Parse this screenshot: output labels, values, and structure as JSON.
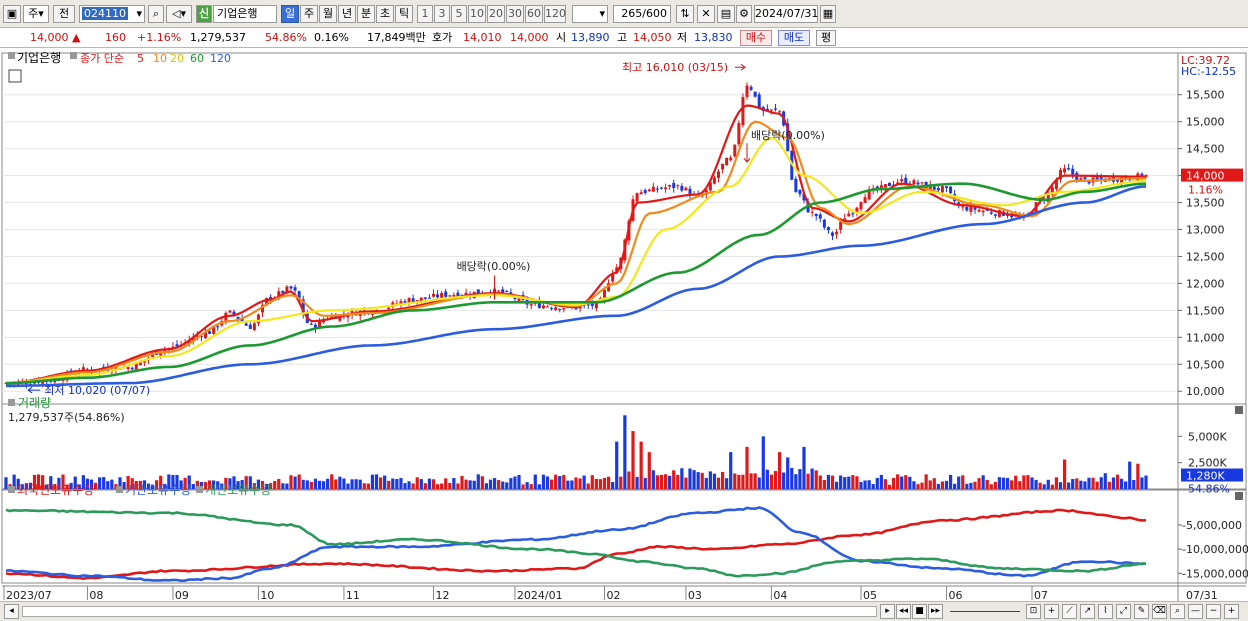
{
  "toolbar": {
    "market": "주",
    "prev": "전",
    "code": "024110",
    "new_badge": "신",
    "name": "기업은행",
    "periods": [
      "일",
      "주",
      "월",
      "년",
      "분",
      "초",
      "틱"
    ],
    "active_period": "일",
    "intervals": [
      "1",
      "3",
      "5",
      "10",
      "20",
      "30",
      "60",
      "120"
    ],
    "count": "265",
    "count_total": "/600",
    "date": "2024/07/31"
  },
  "quote": {
    "price": "14,000",
    "change_arrow": "▲",
    "change": "160",
    "change_pct": "+1.16%",
    "volume": "1,279,537",
    "vol_ratio": "54.86%",
    "turnover": "0.16%",
    "amount": "17,849백만",
    "hoga_label": "호가",
    "bid": "14,010",
    "ask": "14,000",
    "open_label": "시",
    "open": "13,890",
    "high_label": "고",
    "high": "14,050",
    "low_label": "저",
    "low": "13,830",
    "buy_btn": "매수",
    "sell_btn": "매도",
    "eval_btn": "평"
  },
  "colors": {
    "up": "#e01818",
    "down": "#1838e0",
    "ma5": "#e01818",
    "ma10": "#f08a1c",
    "ma20": "#f2e81c",
    "ma60": "#1c9a30",
    "ma120": "#2c5ce0",
    "foreign": "#e01818",
    "institution": "#2c5ce0",
    "individual": "#2c9a5c"
  },
  "chart_data": [
    {
      "type": "line",
      "panel": "price",
      "legend": {
        "stock": "기업은행",
        "ma_label": "종가 단순",
        "ma_periods": [
          "5",
          "10",
          "20",
          "60",
          "120"
        ]
      },
      "ylim": [
        9800,
        16200
      ],
      "yticks": [
        "10,000",
        "10,500",
        "11,000",
        "11,500",
        "12,000",
        "12,500",
        "13,000",
        "13,500",
        "14,000",
        "14,500",
        "15,000",
        "15,500"
      ],
      "ytick_values": [
        10000,
        10500,
        11000,
        11500,
        12000,
        12500,
        13000,
        13500,
        14000,
        14500,
        15000,
        15500
      ],
      "current_price_label": "14,000",
      "current_pct_label": "1.16%",
      "lc_label": "LC:39.72",
      "hc_label": "HC:-12.55",
      "annotations": {
        "high": "최고 16,010 (03/15)",
        "low": "최저 10,020 (07/07)",
        "dividend1": "배당락(0.00%)",
        "dividend2": "배당락(0.00%)"
      },
      "x_months": [
        "2023/07",
        "08",
        "09",
        "10",
        "11",
        "12",
        "2024/01",
        "02",
        "03",
        "04",
        "05",
        "06",
        "07"
      ],
      "x_last_label": "07/31",
      "close_anchors": [
        [
          0,
          10150
        ],
        [
          10,
          10200
        ],
        [
          20,
          10400
        ],
        [
          30,
          10450
        ],
        [
          40,
          10800
        ],
        [
          50,
          11100
        ],
        [
          55,
          11450
        ],
        [
          60,
          11200
        ],
        [
          65,
          11750
        ],
        [
          70,
          11900
        ],
        [
          75,
          11200
        ],
        [
          80,
          11400
        ],
        [
          90,
          11500
        ],
        [
          100,
          11700
        ],
        [
          110,
          11800
        ],
        [
          120,
          11850
        ],
        [
          130,
          11600
        ],
        [
          140,
          11550
        ],
        [
          145,
          11600
        ],
        [
          150,
          12300
        ],
        [
          155,
          13700
        ],
        [
          165,
          13800
        ],
        [
          170,
          13600
        ],
        [
          178,
          14300
        ],
        [
          182,
          15700
        ],
        [
          186,
          15200
        ],
        [
          190,
          15200
        ],
        [
          194,
          13700
        ],
        [
          198,
          13300
        ],
        [
          203,
          12900
        ],
        [
          207,
          13300
        ],
        [
          212,
          13700
        ],
        [
          220,
          13900
        ],
        [
          230,
          13750
        ],
        [
          235,
          13400
        ],
        [
          245,
          13300
        ],
        [
          250,
          13200
        ],
        [
          255,
          13600
        ],
        [
          260,
          14100
        ],
        [
          265,
          13900
        ],
        [
          275,
          13950
        ],
        [
          280,
          14000
        ]
      ],
      "series": [
        {
          "name": "5",
          "anchors": [
            [
              0,
              10150
            ],
            [
              20,
              10380
            ],
            [
              40,
              10780
            ],
            [
              55,
              11400
            ],
            [
              65,
              11700
            ],
            [
              70,
              11850
            ],
            [
              75,
              11300
            ],
            [
              90,
              11480
            ],
            [
              120,
              11820
            ],
            [
              140,
              11560
            ],
            [
              150,
              12200
            ],
            [
              155,
              13500
            ],
            [
              170,
              13650
            ],
            [
              182,
              15300
            ],
            [
              190,
              15150
            ],
            [
              198,
              13400
            ],
            [
              207,
              13150
            ],
            [
              220,
              13850
            ],
            [
              235,
              13450
            ],
            [
              250,
              13250
            ],
            [
              260,
              14000
            ],
            [
              280,
              13980
            ]
          ]
        },
        {
          "name": "10",
          "anchors": [
            [
              0,
              10150
            ],
            [
              20,
              10350
            ],
            [
              40,
              10730
            ],
            [
              55,
              11300
            ],
            [
              70,
              11780
            ],
            [
              78,
              11400
            ],
            [
              90,
              11450
            ],
            [
              120,
              11800
            ],
            [
              140,
              11580
            ],
            [
              150,
              12000
            ],
            [
              158,
              13300
            ],
            [
              175,
              13700
            ],
            [
              184,
              15000
            ],
            [
              192,
              14700
            ],
            [
              200,
              13400
            ],
            [
              207,
              13100
            ],
            [
              222,
              13800
            ],
            [
              240,
              13450
            ],
            [
              252,
              13250
            ],
            [
              262,
              13900
            ],
            [
              280,
              13950
            ]
          ]
        },
        {
          "name": "20",
          "anchors": [
            [
              0,
              10150
            ],
            [
              20,
              10300
            ],
            [
              40,
              10650
            ],
            [
              60,
              11300
            ],
            [
              80,
              11500
            ],
            [
              120,
              11780
            ],
            [
              140,
              11600
            ],
            [
              150,
              11750
            ],
            [
              162,
              13000
            ],
            [
              178,
              13800
            ],
            [
              188,
              14700
            ],
            [
              196,
              14000
            ],
            [
              210,
              13300
            ],
            [
              225,
              13700
            ],
            [
              245,
              13450
            ],
            [
              260,
              13700
            ],
            [
              280,
              13900
            ]
          ]
        },
        {
          "name": "60",
          "anchors": [
            [
              0,
              10150
            ],
            [
              20,
              10250
            ],
            [
              40,
              10450
            ],
            [
              60,
              10850
            ],
            [
              80,
              11200
            ],
            [
              100,
              11500
            ],
            [
              120,
              11650
            ],
            [
              145,
              11650
            ],
            [
              165,
              12200
            ],
            [
              185,
              12900
            ],
            [
              200,
              13500
            ],
            [
              215,
              13750
            ],
            [
              235,
              13850
            ],
            [
              255,
              13550
            ],
            [
              265,
              13700
            ],
            [
              280,
              13850
            ]
          ]
        },
        {
          "name": "120",
          "anchors": [
            [
              0,
              10100
            ],
            [
              30,
              10150
            ],
            [
              60,
              10500
            ],
            [
              90,
              10850
            ],
            [
              120,
              11150
            ],
            [
              150,
              11400
            ],
            [
              170,
              11900
            ],
            [
              190,
              12500
            ],
            [
              210,
              12700
            ],
            [
              240,
              13100
            ],
            [
              265,
              13500
            ],
            [
              280,
              13800
            ]
          ]
        }
      ]
    },
    {
      "type": "bar",
      "panel": "volume",
      "title": "거래량",
      "subtitle": "1,279,537주(54.86%)",
      "yticks": [
        "2,500K",
        "5,000K"
      ],
      "ytick_values": [
        2500,
        5000
      ],
      "ylim": [
        0,
        7500
      ],
      "current_label": "1,280K",
      "current_pct_label": "54.86%",
      "spikes": [
        [
          150,
          4500
        ],
        [
          152,
          7000
        ],
        [
          154,
          5500
        ],
        [
          156,
          4500
        ],
        [
          158,
          3500
        ],
        [
          178,
          3500
        ],
        [
          182,
          4000
        ],
        [
          186,
          5000
        ],
        [
          190,
          3500
        ],
        [
          192,
          3000
        ],
        [
          196,
          4000
        ],
        [
          260,
          2800
        ],
        [
          270,
          1500
        ],
        [
          276,
          2600
        ],
        [
          278,
          2400
        ]
      ],
      "current_value": 1280
    },
    {
      "type": "line",
      "panel": "holdings",
      "legend": [
        "외국인보유수량",
        "기관보유수량",
        "개인보유수량"
      ],
      "yticks": [
        "-5,000,000",
        "-10,000,000",
        "-15,000,000"
      ],
      "ytick_values": [
        -5000000,
        -10000000,
        -15000000
      ],
      "ylim": [
        -17000000,
        1000000
      ],
      "series": [
        {
          "name": "외국인보유수량",
          "anchors": [
            [
              0,
              -15000000
            ],
            [
              20,
              -16000000
            ],
            [
              40,
              -14500000
            ],
            [
              80,
              -13000000
            ],
            [
              120,
              -14500000
            ],
            [
              140,
              -14000000
            ],
            [
              150,
              -11000000
            ],
            [
              160,
              -9500000
            ],
            [
              175,
              -10000000
            ],
            [
              190,
              -9000000
            ],
            [
              210,
              -7000000
            ],
            [
              230,
              -4000000
            ],
            [
              260,
              -2000000
            ],
            [
              275,
              -3500000
            ],
            [
              280,
              -4000000
            ]
          ]
        },
        {
          "name": "기관보유수량",
          "anchors": [
            [
              0,
              -14500000
            ],
            [
              20,
              -15500000
            ],
            [
              40,
              -16500000
            ],
            [
              55,
              -16000000
            ],
            [
              65,
              -14000000
            ],
            [
              80,
              -9500000
            ],
            [
              100,
              -9500000
            ],
            [
              130,
              -8000000
            ],
            [
              150,
              -6000000
            ],
            [
              170,
              -2500000
            ],
            [
              185,
              -1500000
            ],
            [
              195,
              -6500000
            ],
            [
              210,
              -12500000
            ],
            [
              230,
              -14000000
            ],
            [
              250,
              -15500000
            ],
            [
              265,
              -12500000
            ],
            [
              280,
              -13000000
            ]
          ]
        },
        {
          "name": "개인보유수량",
          "anchors": [
            [
              0,
              -2000000
            ],
            [
              40,
              -2500000
            ],
            [
              70,
              -5000000
            ],
            [
              80,
              -9000000
            ],
            [
              100,
              -8000000
            ],
            [
              130,
              -10000000
            ],
            [
              145,
              -11000000
            ],
            [
              155,
              -12500000
            ],
            [
              170,
              -14000000
            ],
            [
              180,
              -15500000
            ],
            [
              190,
              -15000000
            ],
            [
              205,
              -12500000
            ],
            [
              225,
              -12000000
            ],
            [
              245,
              -14000000
            ],
            [
              265,
              -14500000
            ],
            [
              280,
              -13000000
            ]
          ]
        }
      ]
    }
  ],
  "status": {
    "dash": "—"
  }
}
